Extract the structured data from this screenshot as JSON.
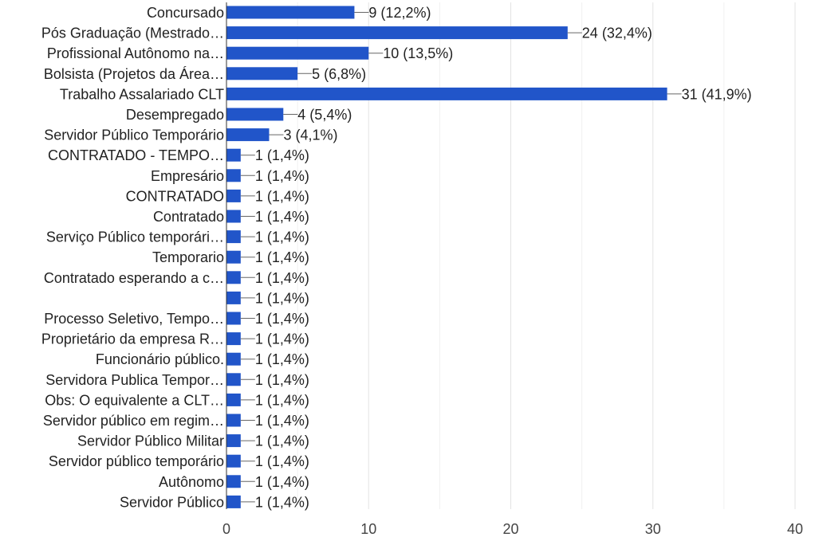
{
  "chart_data": {
    "type": "bar",
    "orientation": "horizontal",
    "title": "",
    "xlabel": "",
    "ylabel": "",
    "xlim": [
      0,
      40
    ],
    "x_ticks": [
      "0",
      "10",
      "20",
      "30",
      "40"
    ],
    "grid": true,
    "bar_color": "#2155c9",
    "categories": [
      "Concursado",
      "Pós Graduação (Mestrado…",
      "Profissional Autônomo na…",
      "Bolsista (Projetos da Área…",
      "Trabalho Assalariado CLT",
      "Desempregado",
      "Servidor Público Temporário",
      "CONTRATADO - TEMPO…",
      "Empresário",
      "CONTRATADO",
      "Contratado",
      "Serviço Público temporári…",
      "Temporario",
      "Contratado esperando a c…",
      "",
      "Processo Seletivo, Tempo…",
      "Proprietário da empresa R…",
      "Funcionário público.",
      "Servidora Publica Tempor…",
      "Obs: O equivalente a CLT…",
      "Servidor público em regim…",
      "Servidor Público Militar",
      "Servidor público temporário",
      "Autônomo",
      "Servidor Público"
    ],
    "values": [
      9,
      24,
      10,
      5,
      31,
      4,
      3,
      1,
      1,
      1,
      1,
      1,
      1,
      1,
      1,
      1,
      1,
      1,
      1,
      1,
      1,
      1,
      1,
      1,
      1
    ],
    "value_labels": [
      "9 (12,2%)",
      "24 (32,4%)",
      "10 (13,5%)",
      "5 (6,8%)",
      "31 (41,9%)",
      "4 (5,4%)",
      "3 (4,1%)",
      "1 (1,4%)",
      "1 (1,4%)",
      "1 (1,4%)",
      "1 (1,4%)",
      "1 (1,4%)",
      "1 (1,4%)",
      "1 (1,4%)",
      "1 (1,4%)",
      "1 (1,4%)",
      "1 (1,4%)",
      "1 (1,4%)",
      "1 (1,4%)",
      "1 (1,4%)",
      "1 (1,4%)",
      "1 (1,4%)",
      "1 (1,4%)",
      "1 (1,4%)",
      "1 (1,4%)"
    ]
  }
}
